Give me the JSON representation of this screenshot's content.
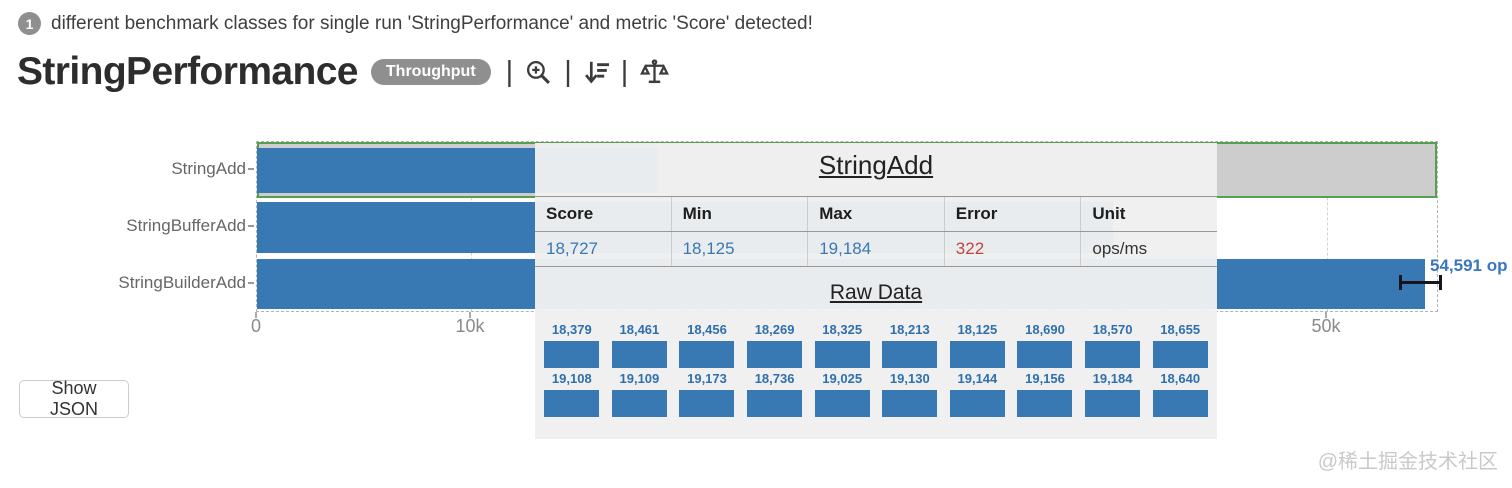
{
  "notice": {
    "badge": "1",
    "text": "different benchmark classes for single run 'StringPerformance' and metric 'Score' detected!"
  },
  "header": {
    "title": "StringPerformance",
    "metric_badge": "Throughput",
    "icons": [
      "zoom-in-icon",
      "sort-descending-icon",
      "compare-scales-icon"
    ]
  },
  "actions": {
    "show_json_label": "Show JSON"
  },
  "watermark": "@稀土掘金技术社区",
  "tooltip": {
    "title": "StringAdd",
    "columns": [
      "Score",
      "Min",
      "Max",
      "Error",
      "Unit"
    ],
    "values": [
      "18,727",
      "18,125",
      "19,184",
      "322",
      "ops/ms"
    ],
    "value_colors": [
      "#3a77b5",
      "#3a77b5",
      "#3a77b5",
      "#bf4640",
      "#333333"
    ],
    "raw_data_title": "Raw Data",
    "raw_rows": [
      [
        "18,379",
        "18,461",
        "18,456",
        "18,269",
        "18,325",
        "18,213",
        "18,125",
        "18,690",
        "18,570",
        "18,655"
      ],
      [
        "19,108",
        "19,109",
        "19,173",
        "18,736",
        "19,025",
        "19,130",
        "19,144",
        "19,156",
        "19,184",
        "18,640"
      ]
    ]
  },
  "chart_data": {
    "type": "bar",
    "orientation": "horizontal",
    "title": "StringPerformance",
    "metric": "Score",
    "unit": "ops/ms",
    "categories": [
      "StringAdd",
      "StringBufferAdd",
      "StringBuilderAdd"
    ],
    "values": [
      18727,
      null,
      54591
    ],
    "value_labels": [
      "",
      "",
      "54,591 op"
    ],
    "highlighted_category": "StringAdd",
    "x_ticks": [
      {
        "value": 0,
        "label": "0"
      },
      {
        "value": 10000,
        "label": "10k"
      },
      {
        "value": 50000,
        "label": "50k"
      }
    ],
    "xlim": [
      0,
      55250
    ],
    "grid": "dashed",
    "legend": "none",
    "colors": {
      "bar": "#3879b3",
      "highlight_fill": "#cdcdcd",
      "highlight_border": "#55a04e",
      "value_text_blue": "#3a77b5",
      "error_text_red": "#bf4640"
    }
  }
}
